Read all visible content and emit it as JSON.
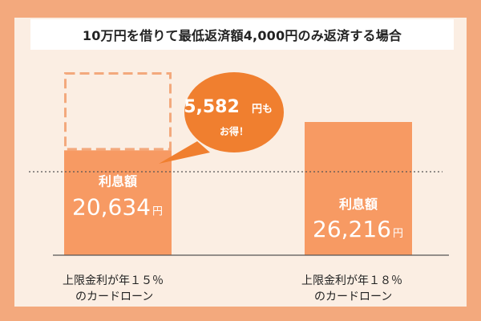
{
  "colors": {
    "frame": "#f3a97d",
    "background": "#fbeee3",
    "bar": "#f79a63",
    "bubble": "#f07f2f",
    "dashed_box": "#f3a97d",
    "dotted_line": "#555555",
    "axis": "#555555"
  },
  "chart_data": {
    "type": "bar",
    "title": "10万円を借りて最低返済額4,000円のみ返済する場合",
    "unit": "円",
    "categories": [
      "上限金利が年１５％\nのカードローン",
      "上限金利が年１８％\nのカードローン"
    ],
    "series": [
      {
        "values": [
          20634,
          26216
        ],
        "bar_labels": [
          "利息額",
          "利息額"
        ],
        "value_labels": [
          "20,634",
          "26,216"
        ]
      }
    ],
    "reference_line": 26216,
    "difference": 5582,
    "annotation": {
      "line1_number": "5,582",
      "line1_unit": "円",
      "line1_suffix": "も",
      "line2": "お得！"
    },
    "ylim": [
      0,
      35000
    ]
  }
}
